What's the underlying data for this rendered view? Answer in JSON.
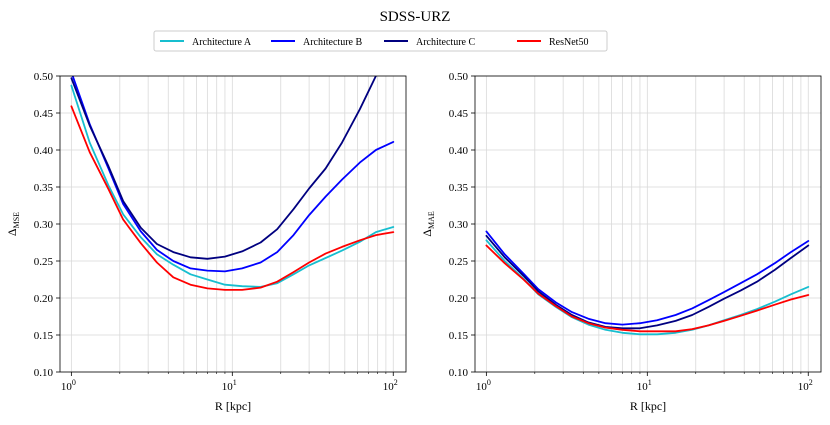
{
  "figure": {
    "suptitle": "SDSS-URZ"
  },
  "legend": {
    "placement": "upper-center",
    "entries": [
      {
        "label": "Architecture A",
        "color": "#17becf"
      },
      {
        "label": "Architecture B",
        "color": "#0000ff"
      },
      {
        "label": "Architecture C",
        "color": "#000080"
      },
      {
        "label": "ResNet50",
        "color": "#ff0000"
      }
    ]
  },
  "chart_data": [
    {
      "type": "line",
      "xscale": "log",
      "xlim": [
        0.85,
        120
      ],
      "ylim": [
        0.1,
        0.5
      ],
      "grid": true,
      "xlabel": "R [kpc]",
      "ylabel": "Δ",
      "ylabel_sub": "MSE",
      "yticks": [
        "0.10",
        "0.15",
        "0.20",
        "0.25",
        "0.30",
        "0.35",
        "0.40",
        "0.45",
        "0.50"
      ],
      "xticks": [
        {
          "value": 1,
          "base": "10",
          "exp": "0"
        },
        {
          "value": 10,
          "base": "10",
          "exp": "1"
        },
        {
          "value": 100,
          "base": "10",
          "exp": "2"
        }
      ],
      "x": [
        1.0,
        1.3,
        1.7,
        2.1,
        2.7,
        3.4,
        4.3,
        5.5,
        7.0,
        9.0,
        11.5,
        15.0,
        19.0,
        24.0,
        30.0,
        38.0,
        48.0,
        62.0,
        78.0,
        100.0
      ],
      "series": [
        {
          "name": "Architecture A",
          "color": "#17becf",
          "values": [
            0.487,
            0.41,
            0.352,
            0.313,
            0.282,
            0.259,
            0.245,
            0.232,
            0.225,
            0.218,
            0.216,
            0.215,
            0.22,
            0.232,
            0.244,
            0.254,
            0.264,
            0.276,
            0.289,
            0.296
          ]
        },
        {
          "name": "Architecture B",
          "color": "#0000ff",
          "values": [
            0.505,
            0.435,
            0.375,
            0.327,
            0.29,
            0.265,
            0.25,
            0.24,
            0.237,
            0.236,
            0.24,
            0.248,
            0.262,
            0.285,
            0.312,
            0.337,
            0.36,
            0.383,
            0.4,
            0.411
          ]
        },
        {
          "name": "Architecture C",
          "color": "#000080",
          "values": [
            0.497,
            0.433,
            0.378,
            0.331,
            0.295,
            0.273,
            0.262,
            0.255,
            0.253,
            0.256,
            0.263,
            0.275,
            0.293,
            0.32,
            0.348,
            0.375,
            0.41,
            0.455,
            0.5,
            0.53
          ]
        },
        {
          "name": "ResNet50",
          "color": "#ff0000",
          "values": [
            0.459,
            0.397,
            0.347,
            0.306,
            0.274,
            0.248,
            0.228,
            0.218,
            0.213,
            0.211,
            0.211,
            0.214,
            0.222,
            0.235,
            0.248,
            0.26,
            0.269,
            0.278,
            0.285,
            0.289
          ]
        }
      ]
    },
    {
      "type": "line",
      "xscale": "log",
      "xlim": [
        0.85,
        120
      ],
      "ylim": [
        0.1,
        0.5
      ],
      "grid": true,
      "xlabel": "R [kpc]",
      "ylabel": "Δ",
      "ylabel_sub": "MAE",
      "yticks": [
        "0.10",
        "0.15",
        "0.20",
        "0.25",
        "0.30",
        "0.35",
        "0.40",
        "0.45",
        "0.50"
      ],
      "xticks": [
        {
          "value": 1,
          "base": "10",
          "exp": "0"
        },
        {
          "value": 10,
          "base": "10",
          "exp": "1"
        },
        {
          "value": 100,
          "base": "10",
          "exp": "2"
        }
      ],
      "x": [
        1.0,
        1.3,
        1.7,
        2.1,
        2.7,
        3.4,
        4.3,
        5.5,
        7.0,
        9.0,
        11.5,
        15.0,
        19.0,
        24.0,
        30.0,
        38.0,
        48.0,
        62.0,
        78.0,
        100.0
      ],
      "series": [
        {
          "name": "Architecture A",
          "color": "#17becf",
          "values": [
            0.278,
            0.25,
            0.226,
            0.205,
            0.188,
            0.174,
            0.164,
            0.157,
            0.153,
            0.151,
            0.151,
            0.153,
            0.157,
            0.163,
            0.17,
            0.177,
            0.185,
            0.195,
            0.205,
            0.215
          ]
        },
        {
          "name": "Architecture B",
          "color": "#0000ff",
          "values": [
            0.29,
            0.259,
            0.233,
            0.212,
            0.194,
            0.181,
            0.172,
            0.166,
            0.164,
            0.166,
            0.17,
            0.177,
            0.186,
            0.197,
            0.208,
            0.22,
            0.232,
            0.247,
            0.262,
            0.277
          ]
        },
        {
          "name": "Architecture C",
          "color": "#000080",
          "values": [
            0.284,
            0.255,
            0.23,
            0.209,
            0.191,
            0.177,
            0.167,
            0.161,
            0.159,
            0.159,
            0.163,
            0.169,
            0.177,
            0.188,
            0.199,
            0.21,
            0.222,
            0.238,
            0.254,
            0.271
          ]
        },
        {
          "name": "ResNet50",
          "color": "#ff0000",
          "values": [
            0.271,
            0.247,
            0.225,
            0.206,
            0.189,
            0.175,
            0.166,
            0.16,
            0.157,
            0.155,
            0.155,
            0.155,
            0.158,
            0.163,
            0.169,
            0.176,
            0.183,
            0.191,
            0.198,
            0.204
          ]
        }
      ]
    }
  ]
}
